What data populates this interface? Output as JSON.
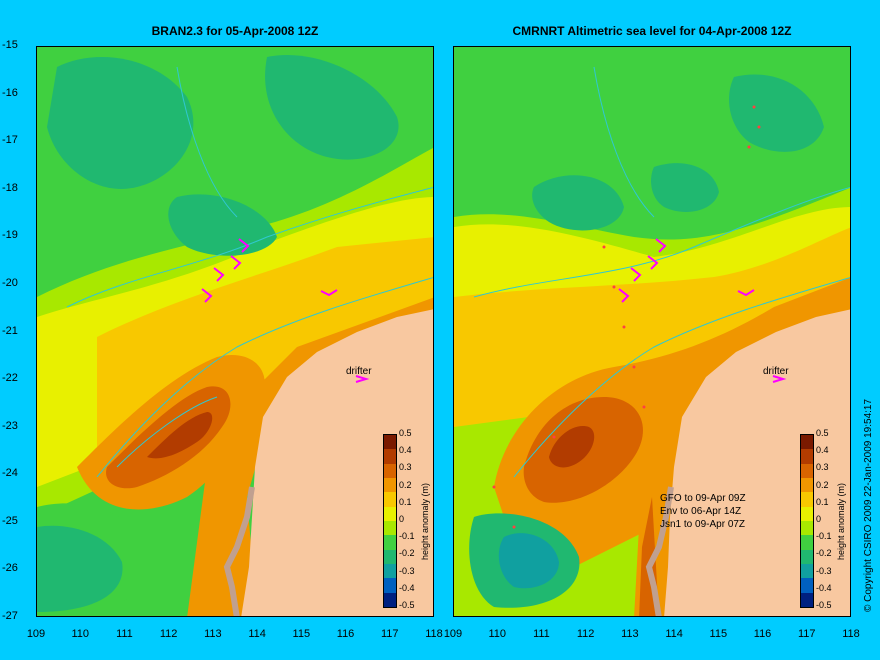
{
  "titles": {
    "left": "BRAN2.3 for 05-Apr-2008 12Z",
    "right": "CMRNRT Altimetric sea level  for 04-Apr-2008 12Z"
  },
  "axes": {
    "x_ticks": [
      "109",
      "110",
      "111",
      "112",
      "113",
      "114",
      "115",
      "116",
      "117",
      "118"
    ],
    "y_ticks": [
      "-15",
      "-16",
      "-17",
      "-18",
      "-19",
      "-20",
      "-21",
      "-22",
      "-23",
      "-24",
      "-25",
      "-26",
      "-27"
    ],
    "lon_range": [
      109,
      118
    ],
    "lat_range": [
      -27,
      -15
    ]
  },
  "colorbar": {
    "label": "height anomaly (m)",
    "ticks": [
      "0.5",
      "0.4",
      "0.3",
      "0.2",
      "0.1",
      "0",
      "-0.1",
      "-0.2",
      "-0.3",
      "-0.4",
      "-0.5"
    ],
    "colors": [
      "#7a1a00",
      "#b23c00",
      "#d86400",
      "#f09600",
      "#f8c800",
      "#e8f000",
      "#a8e800",
      "#40d040",
      "#20b870",
      "#10a0a0",
      "#0060c0",
      "#002080"
    ]
  },
  "annotations": {
    "drifter": "drifter",
    "satellites": [
      "GFO to 09-Apr 09Z",
      "Env to 06-Apr 14Z",
      "Jsn1 to 09-Apr 07Z"
    ],
    "copyright": "© Copyright CSIRO 2009  22-Jan-2009 19:54:17"
  },
  "colors": {
    "background": "#00ccff",
    "land": "#f8c8a0",
    "drifter_arrows": "#ff00ff",
    "contour": "#30c8d0"
  }
}
